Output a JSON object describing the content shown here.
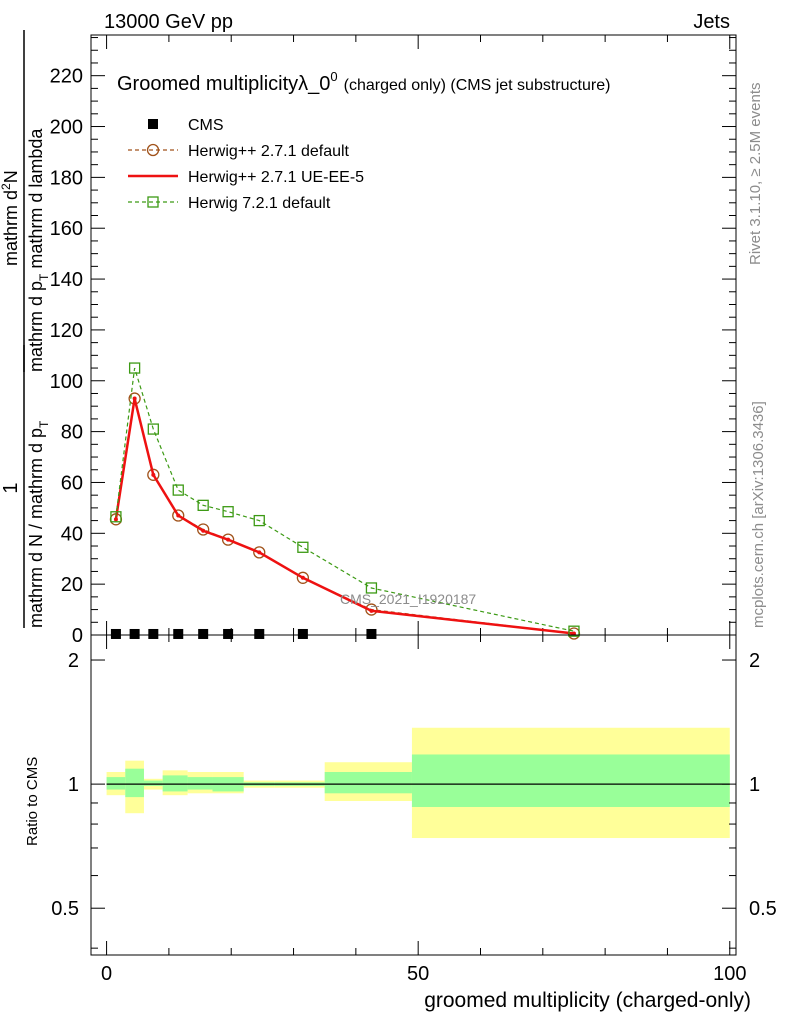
{
  "header": {
    "left": "13000 GeV pp",
    "right": "Jets"
  },
  "side_labels": {
    "rivet": "Rivet 3.1.10, ≥ 2.5M events",
    "mcplots": "mcplots.cern.ch [arXiv:1306.3436]"
  },
  "chart_data": [
    {
      "type": "line",
      "title_main": "Groomed multiplicity",
      "title_symbol": "λ_0",
      "title_sup": "0",
      "title_rest": "(charged only) (CMS jet substructure)",
      "ylabel_numerator_1": "mathrm d",
      "ylabel_numerator_sup": "2",
      "ylabel_numerator_2": "N",
      "ylabel_denominator": "mathrm d p",
      "ylabel_denominator_sub": "T",
      "ylabel_denominator_2": " mathrm d lambda",
      "ylabel_prefactor": "1",
      "ylabel_prefactor_den": "mathrm d N / mathrm d p",
      "ylabel_prefactor_den_sub": "T",
      "ylim": [
        0,
        236
      ],
      "xlim": [
        -2.5,
        101
      ],
      "yticks": [
        0,
        20,
        40,
        60,
        80,
        100,
        120,
        140,
        160,
        180,
        200,
        220
      ],
      "watermark": "CMS_2021_I1920187",
      "legend_position": "top-left",
      "series": [
        {
          "name": "CMS",
          "style": "markers",
          "color": "#000000",
          "x": [
            1.5,
            4.5,
            7.5,
            11.5,
            15.5,
            19.5,
            24.5,
            31.5,
            42.5
          ],
          "y": [
            0.4,
            0.4,
            0.4,
            0.4,
            0.4,
            0.4,
            0.4,
            0.4,
            0.4
          ]
        },
        {
          "name": "Herwig++ 2.7.1 default",
          "style": "dashed-circle",
          "color": "#a0521a",
          "x": [
            1.5,
            4.5,
            7.5,
            11.5,
            15.5,
            19.5,
            24.5,
            31.5,
            42.5,
            75
          ],
          "y": [
            45.5,
            93,
            63,
            47,
            41.5,
            37.5,
            32.5,
            22.5,
            10,
            0.6
          ]
        },
        {
          "name": "Herwig++ 2.7.1 UE-EE-5",
          "style": "solid",
          "color": "#ee1111",
          "x": [
            1.5,
            4.5,
            7.5,
            11.5,
            15.5,
            19.5,
            24.5,
            31.5,
            42.5,
            75
          ],
          "y": [
            45.5,
            93,
            63,
            47,
            41,
            37.5,
            32.5,
            22.5,
            9.5,
            0.6
          ]
        },
        {
          "name": "Herwig 7.2.1 default",
          "style": "dashed-square",
          "color": "#3c9a14",
          "x": [
            1.5,
            4.5,
            7.5,
            11.5,
            15.5,
            19.5,
            24.5,
            31.5,
            42.5,
            75
          ],
          "y": [
            46.5,
            105,
            81,
            57,
            51,
            48.5,
            45,
            34.5,
            18.5,
            1.5
          ]
        }
      ]
    },
    {
      "type": "area",
      "ylabel": "Ratio to CMS",
      "xlabel": "groomed multiplicity (charged-only)",
      "ylim": [
        0.385,
        2.3
      ],
      "log_scale": true,
      "xticks": [
        0,
        50,
        100
      ],
      "yticks": [
        0.5,
        1,
        2
      ],
      "bins": [
        0,
        3,
        6,
        9,
        13,
        17,
        22,
        27,
        35,
        49,
        100
      ],
      "yellow_lo": [
        0.94,
        0.85,
        0.97,
        0.94,
        0.95,
        0.95,
        0.98,
        0.98,
        0.91,
        0.74
      ],
      "yellow_hi": [
        1.07,
        1.14,
        1.03,
        1.08,
        1.07,
        1.07,
        1.02,
        1.02,
        1.13,
        1.37
      ],
      "green_lo": [
        0.97,
        0.93,
        0.99,
        0.96,
        0.97,
        0.96,
        0.99,
        0.99,
        0.95,
        0.88
      ],
      "green_hi": [
        1.04,
        1.09,
        1.02,
        1.05,
        1.04,
        1.04,
        1.01,
        1.01,
        1.07,
        1.18
      ],
      "colors": {
        "yellow": "#ffff99",
        "green": "#99ff99"
      }
    }
  ]
}
